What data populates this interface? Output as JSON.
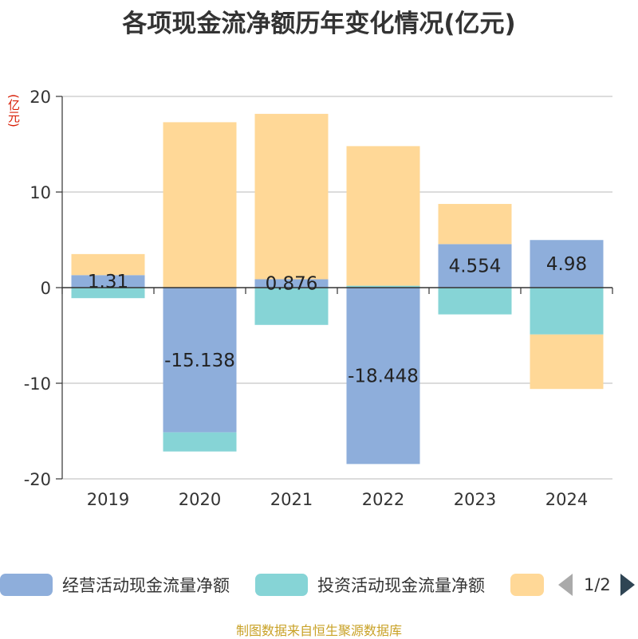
{
  "title": "各项现金流净额历年变化情况(亿元)",
  "unit_label": "(亿元)",
  "source": "制图数据来自恒生聚源数据库",
  "legend": {
    "items": [
      {
        "label": "经营活动现金流量净额",
        "color": "#8eaedb"
      },
      {
        "label": "投资活动现金流量净额",
        "color": "#86d4d6"
      },
      {
        "label": "",
        "color": "#ffd897"
      }
    ],
    "page": "1/2"
  },
  "chart_data": {
    "type": "bar",
    "stacked": true,
    "categories": [
      "2019",
      "2020",
      "2021",
      "2022",
      "2023",
      "2024"
    ],
    "ylim": [
      -20,
      20
    ],
    "yticks": [
      -20,
      -10,
      0,
      10,
      20
    ],
    "grid": true,
    "legend_position": "bottom",
    "series": [
      {
        "name": "经营活动现金流量净额",
        "values": [
          1.31,
          -15.138,
          0.876,
          -18.448,
          4.554,
          4.98
        ],
        "labels": [
          "1.31",
          "-15.138",
          "0.876",
          "-18.448",
          "4.554",
          "4.98"
        ]
      },
      {
        "name": "投资活动现金流量净额",
        "values": [
          -1.1,
          -2.0,
          -3.9,
          0.2,
          -2.8,
          -4.9
        ]
      },
      {
        "values": [
          2.2,
          17.3,
          17.3,
          14.6,
          4.2,
          -5.7
        ]
      }
    ]
  }
}
